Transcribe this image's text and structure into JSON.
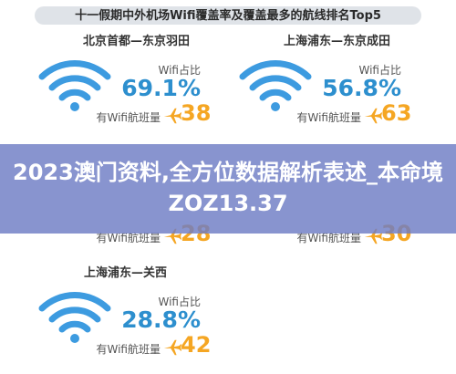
{
  "infographic": {
    "title": "十一假期中外机场Wifi覆盖率及覆盖最多的航线排名Top5",
    "wifi_color": "#3d9be0",
    "pct_color": "#2d8fce",
    "count_color": "#f5a623",
    "routes": [
      {
        "route": "北京首都—东京羽田",
        "wifi_label": "Wifi占比",
        "wifi_pct": "69.1%",
        "flights_label": "有Wifi航班量",
        "flights": "38"
      },
      {
        "route": "上海浦东—东京成田",
        "wifi_label": "Wifi占比",
        "wifi_pct": "56.8%",
        "flights_label": "有Wifi航班量",
        "flights": "63"
      },
      {
        "flights_label": "有Wifi航班量",
        "flights": "28"
      },
      {
        "flights_label": "有Wifi航班量",
        "flights": "30"
      },
      {
        "route": "上海浦东—关西",
        "wifi_label": "Wifi占比",
        "wifi_pct": "28.8%",
        "flights_label": "有Wifi航班量",
        "flights": "42"
      }
    ]
  },
  "banner": {
    "text": "2023澳门资料,全方位数据解析表述_本命境ZOZ13.37",
    "color": "#6e7cc4"
  }
}
